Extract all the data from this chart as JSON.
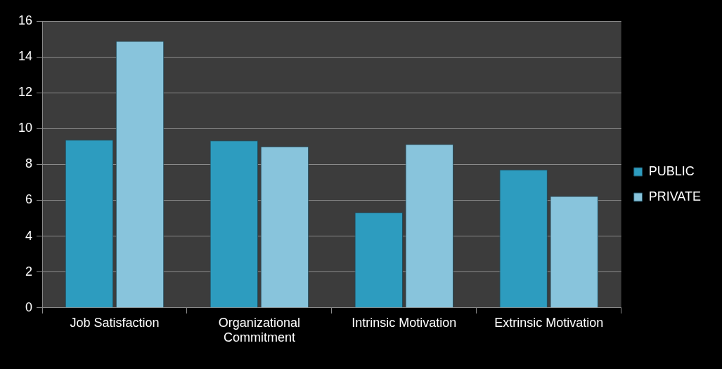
{
  "chart_data": {
    "type": "bar",
    "categories": [
      "Job Satisfaction",
      "Organizational Commitment",
      "Intrinsic Motivation",
      "Extrinsic Motivation"
    ],
    "series": [
      {
        "name": "PUBLIC",
        "color": "#2d9cbf",
        "values": [
          9.38,
          9.34,
          5.32,
          7.71
        ]
      },
      {
        "name": "PRIVATE",
        "color": "#88c4dc",
        "values": [
          14.88,
          9.0,
          9.13,
          6.23
        ]
      }
    ],
    "ylim": [
      0,
      16
    ],
    "yticks": [
      0,
      2,
      4,
      6,
      8,
      10,
      12,
      14,
      16
    ],
    "grid": "y",
    "legend": "right"
  }
}
